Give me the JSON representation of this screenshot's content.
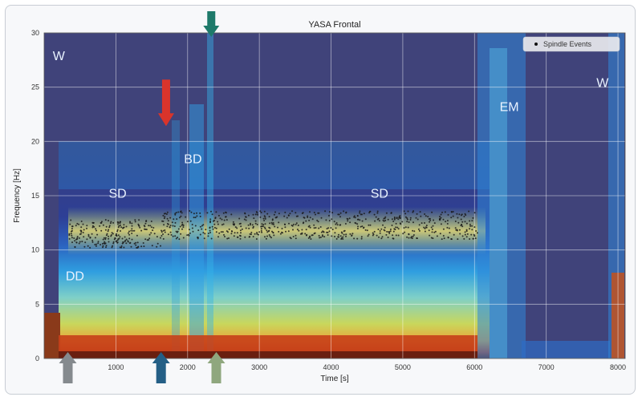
{
  "chart_data": {
    "type": "heatmap",
    "title": "YASA Frontal",
    "xlabel": "Time [s]",
    "ylabel": "Frequency [Hz]",
    "xlim": [
      0,
      8100
    ],
    "ylim": [
      0,
      30
    ],
    "x_ticks": [
      1000,
      2000,
      3000,
      4000,
      5000,
      6000,
      7000,
      8000
    ],
    "y_ticks": [
      0,
      5,
      10,
      15,
      20,
      25,
      30
    ],
    "grid": true,
    "legend": {
      "label": "Spindle Events",
      "position": "top-right"
    },
    "stage_labels": [
      {
        "text": "W",
        "t": 120,
        "f": 27.5
      },
      {
        "text": "DD",
        "t": 300,
        "f": 7.2
      },
      {
        "text": "SD",
        "t": 900,
        "f": 14.8
      },
      {
        "text": "BD",
        "t": 1950,
        "f": 18.0
      },
      {
        "text": "SD",
        "t": 4550,
        "f": 14.8
      },
      {
        "text": "EM",
        "t": 6350,
        "f": 22.8
      },
      {
        "text": "W",
        "t": 7700,
        "f": 25.0
      }
    ],
    "spindle_band_hz": [
      10.5,
      13.5
    ],
    "spindle_time_range_s": [
      350,
      6050
    ],
    "arrows": [
      {
        "color": "#d9342b",
        "t": 1700,
        "f": 22.0,
        "direction": "down"
      },
      {
        "color": "#1e7a6a",
        "t": 2330,
        "f": 31.0,
        "direction": "down"
      },
      {
        "color": "#858a8e",
        "t": 330,
        "direction": "up"
      },
      {
        "color": "#245f86",
        "t": 1630,
        "direction": "up"
      },
      {
        "color": "#8fa77e",
        "t": 2400,
        "direction": "up"
      }
    ]
  }
}
